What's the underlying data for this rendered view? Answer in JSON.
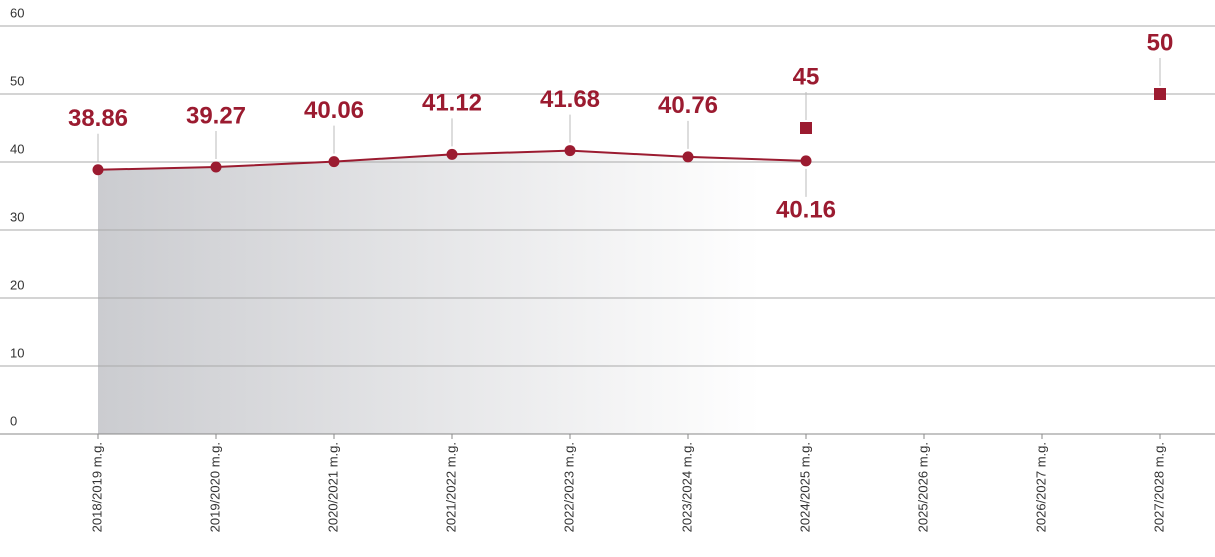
{
  "chart_data": {
    "type": "line",
    "categories": [
      "2018/2019 m.g.",
      "2019/2020 m.g.",
      "2020/2021 m.g.",
      "2021/2022 m.g.",
      "2022/2023 m.g.",
      "2023/2024 m.g.",
      "2024/2025 m.g.",
      "2025/2026 m.g.",
      "2026/2027 m.g.",
      "2027/2028 m.g."
    ],
    "series": [
      {
        "color": "#9b1b30",
        "marker": "circle",
        "area": true,
        "values": [
          38.86,
          39.27,
          40.06,
          41.12,
          41.68,
          40.76,
          40.16,
          null,
          null,
          null
        ]
      },
      {
        "color": "#9b1b30",
        "marker": "square",
        "values": [
          null,
          null,
          null,
          null,
          null,
          null,
          45,
          null,
          null,
          50
        ]
      }
    ],
    "ylim": [
      0,
      60
    ],
    "yticks": [
      0,
      10,
      20,
      30,
      40,
      50,
      60
    ],
    "grid": true
  }
}
